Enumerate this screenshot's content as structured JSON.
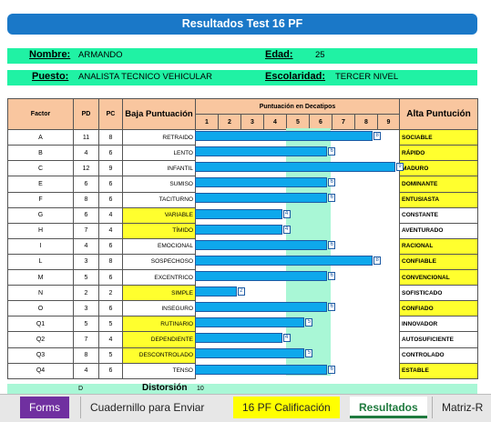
{
  "title": "Resultados Test 16 PF",
  "info": {
    "nombre_label": "Nombre:",
    "nombre": "ARMANDO",
    "edad_label": "Edad:",
    "edad": "25",
    "puesto_label": "Puesto:",
    "puesto": "ANALISTA TECNICO VEHICULAR",
    "escolaridad_label": "Escolaridad:",
    "escolaridad": "TERCER NIVEL"
  },
  "headers": {
    "factor": "Factor",
    "pd": "PD",
    "pc": "PC",
    "baja": "Baja Puntuación",
    "decatipos": "Puntuación en Decatipos",
    "alta": "Alta Puntución",
    "scale": [
      "1",
      "2",
      "3",
      "4",
      "5",
      "6",
      "7",
      "8",
      "9"
    ]
  },
  "chart_data": {
    "type": "bar",
    "title": "Puntuación en Decatipos",
    "xlim": [
      0,
      9
    ],
    "band": [
      4,
      6
    ],
    "categories": [
      "A",
      "B",
      "C",
      "E",
      "F",
      "G",
      "H",
      "I",
      "L",
      "M",
      "N",
      "O",
      "Q1",
      "Q2",
      "Q3",
      "Q4"
    ],
    "values": [
      8,
      6,
      9,
      6,
      6,
      4,
      4,
      6,
      8,
      6,
      2,
      6,
      5,
      4,
      5,
      6
    ],
    "value_labels": [
      "8",
      "6",
      "9",
      "6",
      "6",
      "4",
      "4",
      "6",
      "8",
      "6",
      "2",
      "6",
      "5",
      "4",
      "5",
      "6"
    ]
  },
  "rows": [
    {
      "factor": "A",
      "pd": "11",
      "pc": "8",
      "low": "RETRAIDO",
      "high": "SOCIABLE",
      "low_hl": false,
      "high_hl": true
    },
    {
      "factor": "B",
      "pd": "4",
      "pc": "6",
      "low": "LENTO",
      "high": "RÁPIDO",
      "low_hl": false,
      "high_hl": true
    },
    {
      "factor": "C",
      "pd": "12",
      "pc": "9",
      "low": "INFANTIL",
      "high": "MADURO",
      "low_hl": false,
      "high_hl": true
    },
    {
      "factor": "E",
      "pd": "6",
      "pc": "6",
      "low": "SUMISO",
      "high": "DOMINANTE",
      "low_hl": false,
      "high_hl": true
    },
    {
      "factor": "F",
      "pd": "8",
      "pc": "6",
      "low": "TACITURNO",
      "high": "ENTUSIASTA",
      "low_hl": false,
      "high_hl": true
    },
    {
      "factor": "G",
      "pd": "6",
      "pc": "4",
      "low": "VARIABLE",
      "high": "CONSTANTE",
      "low_hl": true,
      "high_hl": false
    },
    {
      "factor": "H",
      "pd": "7",
      "pc": "4",
      "low": "TÍMIDO",
      "high": "AVENTURADO",
      "low_hl": true,
      "high_hl": false
    },
    {
      "factor": "I",
      "pd": "4",
      "pc": "6",
      "low": "EMOCIONAL",
      "high": "RACIONAL",
      "low_hl": false,
      "high_hl": true
    },
    {
      "factor": "L",
      "pd": "3",
      "pc": "8",
      "low": "SOSPECHOSO",
      "high": "CONFIABLE",
      "low_hl": false,
      "high_hl": true
    },
    {
      "factor": "M",
      "pd": "5",
      "pc": "6",
      "low": "EXCENTRICO",
      "high": "CONVENCIONAL",
      "low_hl": false,
      "high_hl": true
    },
    {
      "factor": "N",
      "pd": "2",
      "pc": "2",
      "low": "SIMPLE",
      "high": "SOFISTICADO",
      "low_hl": true,
      "high_hl": false
    },
    {
      "factor": "O",
      "pd": "3",
      "pc": "6",
      "low": "INSEGURO",
      "high": "CONFIADO",
      "low_hl": false,
      "high_hl": true
    },
    {
      "factor": "Q1",
      "pd": "5",
      "pc": "5",
      "low": "RUTINARIO",
      "high": "INNOVADOR",
      "low_hl": true,
      "high_hl": false
    },
    {
      "factor": "Q2",
      "pd": "7",
      "pc": "4",
      "low": "DEPENDIENTE",
      "high": "AUTOSUFICIENTE",
      "low_hl": true,
      "high_hl": false
    },
    {
      "factor": "Q3",
      "pd": "8",
      "pc": "5",
      "low": "DESCONTROLADO",
      "high": "CONTROLADO",
      "low_hl": true,
      "high_hl": false
    },
    {
      "factor": "Q4",
      "pd": "4",
      "pc": "6",
      "low": "TENSO",
      "high": "ESTABLE",
      "low_hl": false,
      "high_hl": true
    }
  ],
  "footer": {
    "d_label": "D",
    "distorsion_label": "Distorsión",
    "distorsion_value": "10"
  },
  "tabs": [
    {
      "label": "Forms"
    },
    {
      "label": "Cuadernillo para Enviar"
    },
    {
      "label": "16 PF Calificación"
    },
    {
      "label": "Resultados"
    },
    {
      "label": "Matriz-R"
    }
  ],
  "colors": {
    "title_bg": "#1a78c8",
    "info_band": "#20f2a4",
    "header_bg": "#f9c69f",
    "highlight": "#ffff2e",
    "bar": "#0ea8ec",
    "average_band": "#a9f7d6"
  }
}
